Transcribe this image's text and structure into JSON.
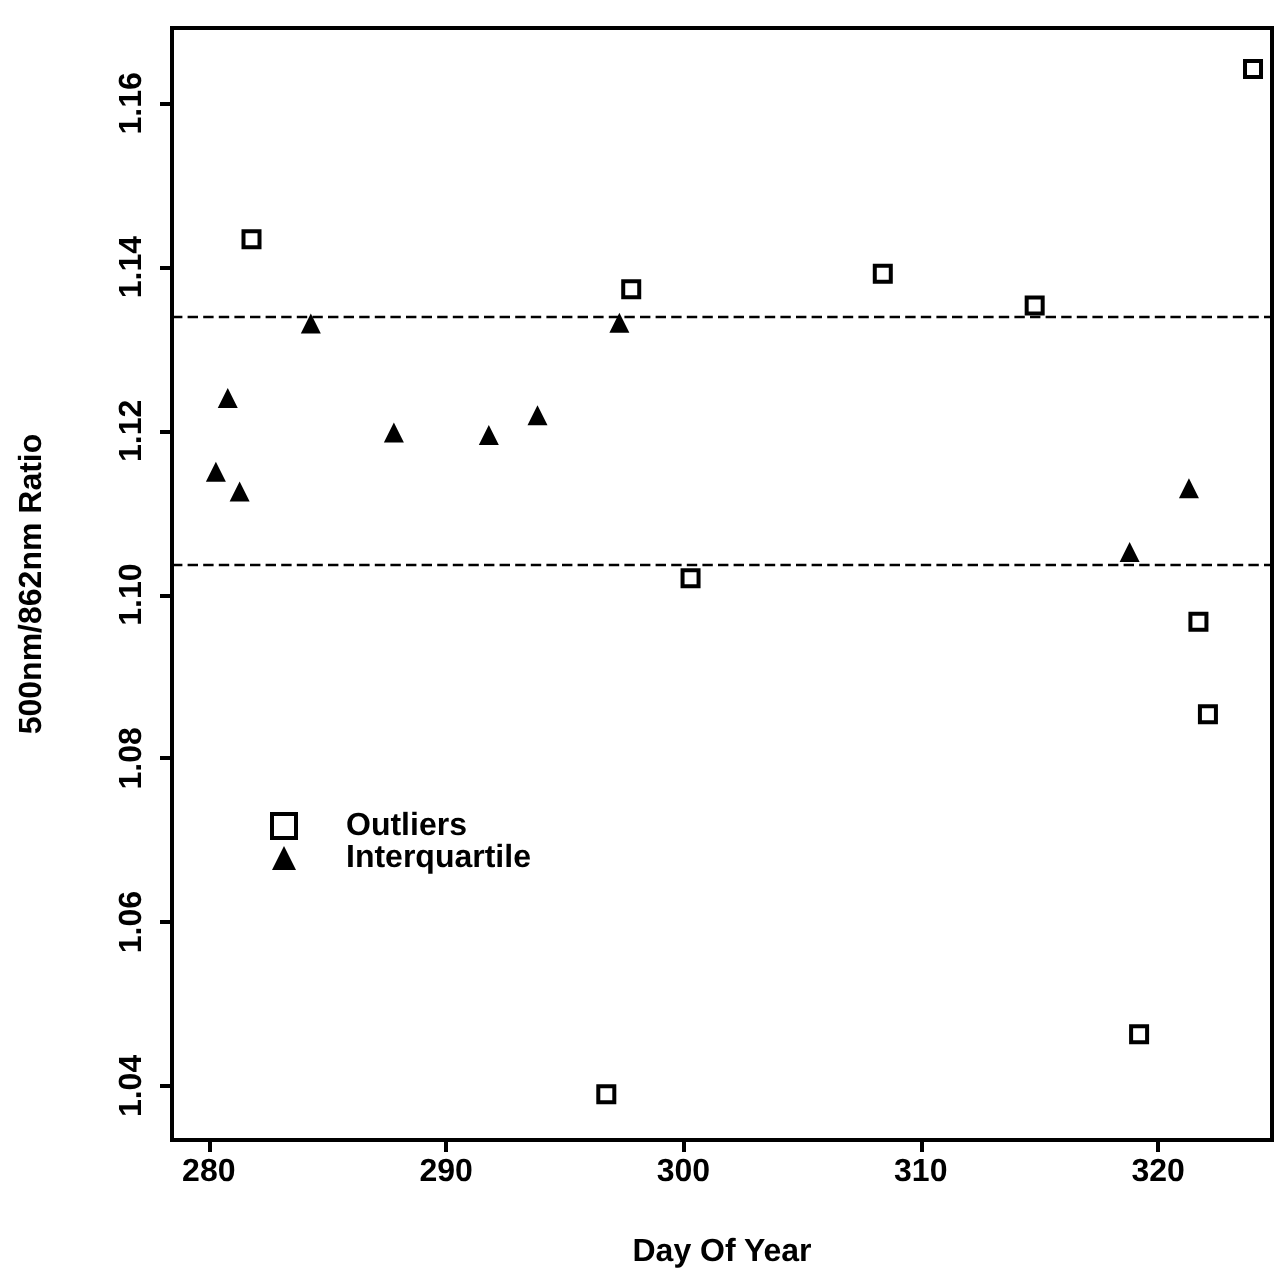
{
  "chart_data": {
    "type": "scatter",
    "xlabel": "Day Of Year",
    "ylabel": "500nm/862nm Ratio",
    "xlim": [
      278.45,
      324.8
    ],
    "xticks": [
      280,
      290,
      300,
      310,
      320
    ],
    "ylim": [
      1.0334,
      1.1692
    ],
    "yticks": [
      1.04,
      1.06,
      1.08,
      {
        "value": 1.1,
        "label": "1.10"
      },
      1.12,
      1.14,
      1.16
    ],
    "grid": false,
    "legend": "left",
    "series": [
      {
        "name": "Outliers",
        "color": "#000000",
        "marker": "square",
        "x": [
          281.8,
          297.8,
          324.0,
          308.4,
          314.8,
          300.3,
          321.7,
          322.1,
          319.2,
          296.75
        ],
        "values": [
          1.1434,
          1.1373,
          1.1642,
          1.1392,
          1.1353,
          1.102,
          1.0967,
          1.0854,
          1.0463,
          1.039
        ]
      },
      {
        "name": "Interquartile",
        "color": "#000000",
        "marker": "triangle",
        "x": [
          280.3,
          280.8,
          281.3,
          284.3,
          287.8,
          291.8,
          293.85,
          297.3,
          321.3,
          318.8
        ],
        "values": [
          1.115,
          1.124,
          1.1126,
          1.1331,
          1.1198,
          1.1195,
          1.1219,
          1.1332,
          1.113,
          1.1052
        ]
      }
    ],
    "ref_lines": [
      {
        "axis": "y",
        "value": 1.134,
        "line_style": "dashed",
        "color": "#000000"
      },
      {
        "axis": "y",
        "value": 1.1038,
        "line_style": "dashed",
        "color": "#000000"
      }
    ]
  }
}
